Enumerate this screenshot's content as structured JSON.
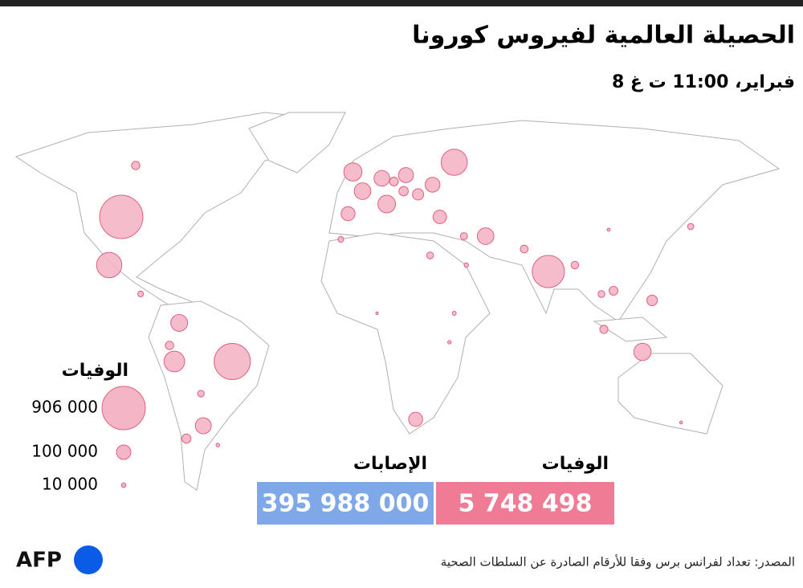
{
  "header": {
    "title": "الحصيلة العالمية لفيروس كورونا",
    "subtitle": "8 فبراير، 11:00 ت غ"
  },
  "legend": {
    "title": "الوفيات",
    "sizes": [
      {
        "value": 906000,
        "label": "906 000"
      },
      {
        "value": 100000,
        "label": "100 000"
      },
      {
        "value": 10000,
        "label": "10 000"
      }
    ]
  },
  "totals": [
    {
      "label": "الإصابات",
      "value": "395 988 000"
    },
    {
      "label": "الوفيات",
      "value": "5 748 498"
    }
  ],
  "bubbles": [
    {
      "lon": -98,
      "lat": 39,
      "value": 906000
    },
    {
      "lon": -52,
      "lat": -6,
      "value": 632000
    },
    {
      "lon": 79,
      "lat": 22,
      "value": 502000
    },
    {
      "lon": 40,
      "lat": 56,
      "value": 330000
    },
    {
      "lon": -103,
      "lat": 24,
      "value": 308000
    },
    {
      "lon": -76,
      "lat": -6,
      "value": 206000
    },
    {
      "lon": -2,
      "lat": 53,
      "value": 158000
    },
    {
      "lon": 118,
      "lat": -3,
      "value": 144000
    },
    {
      "lon": 12,
      "lat": 43,
      "value": 150000
    },
    {
      "lon": -74,
      "lat": 6,
      "value": 136000
    },
    {
      "lon": 53,
      "lat": 33,
      "value": 133000
    },
    {
      "lon": 2,
      "lat": 47,
      "value": 133000
    },
    {
      "lon": -64,
      "lat": -26,
      "value": 123000
    },
    {
      "lon": 10,
      "lat": 51,
      "value": 119000
    },
    {
      "lon": 20,
      "lat": 52,
      "value": 108000
    },
    {
      "lon": 31,
      "lat": 49,
      "value": 106000
    },
    {
      "lon": 24,
      "lat": -24,
      "value": 95000
    },
    {
      "lon": -4,
      "lat": 40,
      "value": 94000
    },
    {
      "lon": 34,
      "lat": 39,
      "value": 88000
    },
    {
      "lon": 25,
      "lat": 46,
      "value": 61000
    },
    {
      "lon": 122,
      "lat": 13,
      "value": 54000
    },
    {
      "lon": -71,
      "lat": -30,
      "value": 40000
    },
    {
      "lon": -78,
      "lat": -1,
      "value": 34000
    },
    {
      "lon": -92,
      "lat": 55,
      "value": 34000
    },
    {
      "lon": 30,
      "lat": 27,
      "value": 23000
    },
    {
      "lon": 69,
      "lat": 29,
      "value": 29500
    },
    {
      "lon": 90,
      "lat": 24,
      "value": 28000
    },
    {
      "lon": 106,
      "lat": 16,
      "value": 38000
    },
    {
      "lon": 138,
      "lat": 36,
      "value": 19000
    },
    {
      "lon": 102,
      "lat": 4,
      "value": 32000
    },
    {
      "lon": 101,
      "lat": 15,
      "value": 22000
    },
    {
      "lon": 44,
      "lat": 33,
      "value": 24000
    },
    {
      "lon": -65,
      "lat": -16,
      "value": 21000
    },
    {
      "lon": -7,
      "lat": 32,
      "value": 15700
    },
    {
      "lon": 134,
      "lat": -25,
      "value": 4000
    },
    {
      "lon": 104,
      "lat": 35,
      "value": 4600
    },
    {
      "lon": 19,
      "lat": 47,
      "value": 43000
    },
    {
      "lon": 15,
      "lat": 50,
      "value": 37000
    },
    {
      "lon": 45,
      "lat": 24,
      "value": 9000
    },
    {
      "lon": 40,
      "lat": 9,
      "value": 7400
    },
    {
      "lon": 38,
      "lat": 0,
      "value": 5500
    },
    {
      "lon": 8,
      "lat": 9,
      "value": 3100
    },
    {
      "lon": -58,
      "lat": -32,
      "value": 6300
    },
    {
      "lon": -90,
      "lat": 15,
      "value": 16000
    }
  ],
  "footer": {
    "logo": "AFP",
    "source": "المصدر: تعداد لفرانس برس وفقا للأرقام الصادرة عن السلطات الصحية"
  }
}
